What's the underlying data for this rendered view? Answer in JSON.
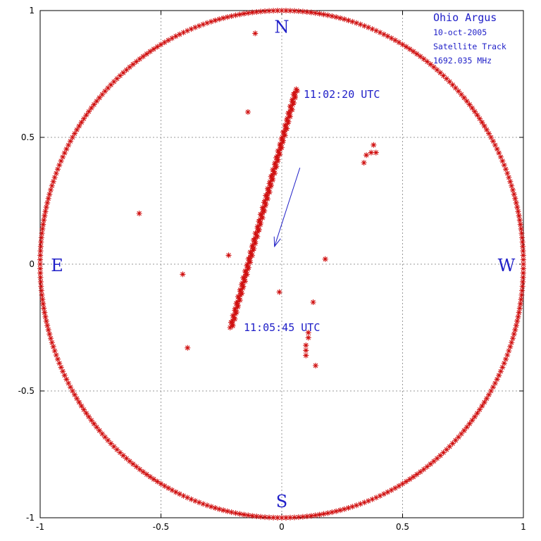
{
  "chart_data": {
    "type": "scatter",
    "title": "",
    "xlabel": "",
    "ylabel": "",
    "xlim": [
      -1,
      1
    ],
    "ylim": [
      -1,
      1
    ],
    "grid": true,
    "x_ticks": [
      -1,
      -0.5,
      0,
      0.5,
      1
    ],
    "y_ticks": [
      -1,
      -0.5,
      0,
      0.5,
      1
    ],
    "x_tick_labels": [
      "-1",
      "-0.5",
      "0",
      "0.5",
      "1"
    ],
    "y_tick_labels": [
      "-1",
      "-0.5",
      "0",
      "0.5",
      "1"
    ],
    "colors": {
      "points": "#d01010",
      "text": "#2020c8",
      "grid": "#9a9a9a"
    },
    "compass": {
      "north": {
        "label": "N",
        "x": 0.0,
        "y": 0.93
      },
      "south": {
        "label": "S",
        "x": 0.0,
        "y": -0.94
      },
      "east": {
        "label": "E",
        "x": -0.93,
        "y": -0.01
      },
      "west": {
        "label": "W",
        "x": 0.93,
        "y": -0.01
      }
    },
    "info_box": {
      "title": "Ohio Argus",
      "lines": [
        "10-oct-2005",
        "Satellite Track",
        "1692.035 MHz"
      ]
    },
    "annotations": [
      {
        "text": "11:02:20 UTC",
        "x": 0.09,
        "y": 0.66
      },
      {
        "text": "11:05:45 UTC",
        "x": -0.15,
        "y": -0.26
      }
    ],
    "arrow": {
      "from": [
        0.075,
        0.38
      ],
      "to": [
        -0.03,
        0.07
      ]
    },
    "horizon_circle": {
      "radius": 1.0,
      "points": 360
    },
    "track": {
      "start": [
        0.06,
        0.69
      ],
      "end": [
        -0.21,
        -0.25
      ],
      "points": 140
    },
    "scatter_points": [
      [
        -0.11,
        0.91
      ],
      [
        -0.14,
        0.6
      ],
      [
        -0.59,
        0.2
      ],
      [
        -0.22,
        0.035
      ],
      [
        -0.41,
        -0.04
      ],
      [
        -0.39,
        -0.33
      ],
      [
        -0.01,
        -0.11
      ],
      [
        0.18,
        0.02
      ],
      [
        0.13,
        -0.15
      ],
      [
        0.11,
        -0.27
      ],
      [
        0.11,
        -0.29
      ],
      [
        0.1,
        -0.32
      ],
      [
        0.1,
        -0.34
      ],
      [
        0.1,
        -0.36
      ],
      [
        0.14,
        -0.4
      ],
      [
        0.34,
        0.4
      ],
      [
        0.35,
        0.43
      ],
      [
        0.37,
        0.44
      ],
      [
        0.39,
        0.44
      ],
      [
        0.38,
        0.47
      ]
    ]
  }
}
